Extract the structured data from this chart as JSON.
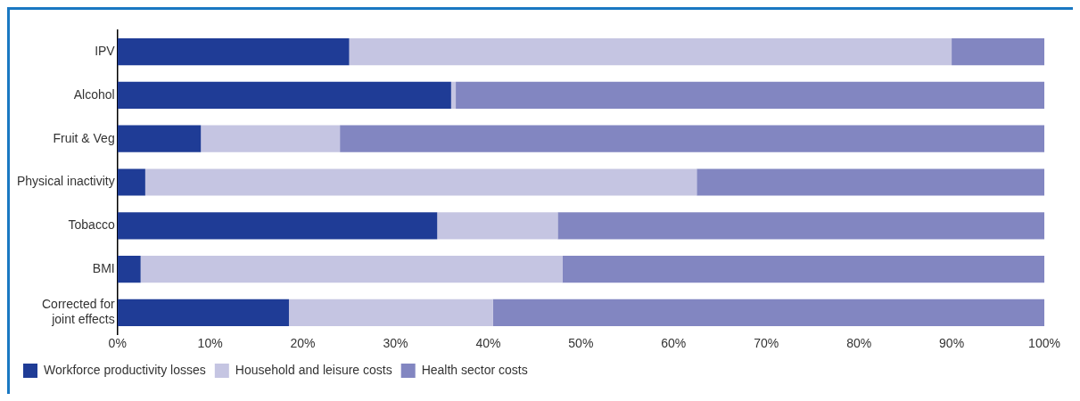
{
  "chart_data": {
    "type": "bar",
    "orientation": "horizontal",
    "stacked": true,
    "categories": [
      "IPV",
      "Alcohol",
      "Fruit & Veg",
      "Physical inactivity",
      "Tobacco",
      "BMI",
      "Corrected for joint effects"
    ],
    "series": [
      {
        "name": "Workforce productivity losses",
        "color": "#1f3c96",
        "values": [
          25,
          36,
          9,
          3,
          34.5,
          2.5,
          18.5
        ]
      },
      {
        "name": "Household and leisure costs",
        "color": "#c5c5e2",
        "values": [
          65,
          0.5,
          15,
          59.5,
          13,
          45.5,
          22
        ]
      },
      {
        "name": "Health sector costs",
        "color": "#8286c1",
        "values": [
          10,
          63.5,
          76,
          37.5,
          52.5,
          52,
          59.5
        ]
      }
    ],
    "xlim": [
      0,
      100
    ],
    "xticks": [
      {
        "value": 0,
        "label": "0%"
      },
      {
        "value": 10,
        "label": "10%"
      },
      {
        "value": 20,
        "label": "20%"
      },
      {
        "value": 30,
        "label": "30%"
      },
      {
        "value": 40,
        "label": "40%"
      },
      {
        "value": 50,
        "label": "50%"
      },
      {
        "value": 60,
        "label": "60%"
      },
      {
        "value": 70,
        "label": "70%"
      },
      {
        "value": 80,
        "label": "80%"
      },
      {
        "value": 90,
        "label": "90%"
      },
      {
        "value": 100,
        "label": "100%"
      }
    ],
    "grid": false,
    "legend": "bottom left"
  }
}
